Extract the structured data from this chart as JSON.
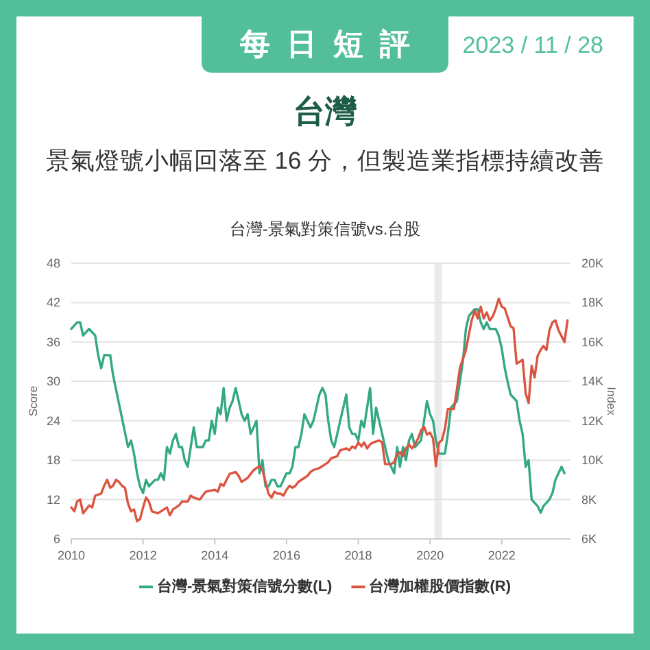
{
  "chart_data": {
    "type": "line",
    "title": "台灣-景氣對策信號vs.台股",
    "annotations": [
      "每日短評",
      "2023 / 11 / 28",
      "台灣",
      "景氣燈號小幅回落至 16 分，但製造業指標持續改善"
    ],
    "ylabel": "Score",
    "y2label": "Index",
    "xlim": [
      "2010-01",
      "2023-12"
    ],
    "xticks": [
      "2010",
      "2012",
      "2014",
      "2016",
      "2018",
      "2020",
      "2022"
    ],
    "ylim": [
      6,
      48
    ],
    "yticks": [
      6,
      12,
      18,
      24,
      30,
      36,
      42,
      48
    ],
    "y2lim": [
      6000,
      20000
    ],
    "y2ticks": [
      {
        "value": 6000,
        "label": "6K"
      },
      {
        "value": 8000,
        "label": "8K"
      },
      {
        "value": 10000,
        "label": "10K"
      },
      {
        "value": 12000,
        "label": "12K"
      },
      {
        "value": 14000,
        "label": "14K"
      },
      {
        "value": 16000,
        "label": "16K"
      },
      {
        "value": 18000,
        "label": "18K"
      },
      {
        "value": 20000,
        "label": "20K"
      }
    ],
    "grid": "y",
    "legend": "bottom",
    "bands": [
      {
        "axis": "x",
        "from": "2020-02-15",
        "to": "2020-04-30",
        "color": "#ebebeb"
      }
    ],
    "series": [
      {
        "name": "台灣-景氣對策信號分數(L)",
        "color": "#33a884",
        "x": [
          "2010-01",
          "2010-03",
          "2010-04",
          "2010-05",
          "2010-07",
          "2010-09",
          "2010-10",
          "2010-11",
          "2010-12",
          "2011-02",
          "2011-03",
          "2011-08",
          "2011-09",
          "2011-10",
          "2011-11",
          "2011-12",
          "2012-01",
          "2012-02",
          "2012-03",
          "2012-05",
          "2012-06",
          "2012-07",
          "2012-08",
          "2012-09",
          "2012-10",
          "2012-11",
          "2012-12",
          "2013-01",
          "2013-02",
          "2013-03",
          "2013-04",
          "2013-05",
          "2013-06",
          "2013-07",
          "2013-09",
          "2013-10",
          "2013-11",
          "2013-12",
          "2014-01",
          "2014-02",
          "2014-03",
          "2014-04",
          "2014-05",
          "2014-06",
          "2014-07",
          "2014-08",
          "2014-09",
          "2014-10",
          "2014-11",
          "2014-12",
          "2015-01",
          "2015-02",
          "2015-03",
          "2015-04",
          "2015-05",
          "2015-06",
          "2015-07",
          "2015-08",
          "2015-09",
          "2015-10",
          "2015-11",
          "2015-12",
          "2016-01",
          "2016-02",
          "2016-03",
          "2016-04",
          "2016-05",
          "2016-06",
          "2016-07",
          "2016-08",
          "2016-09",
          "2016-10",
          "2016-11",
          "2016-12",
          "2017-01",
          "2017-02",
          "2017-03",
          "2017-04",
          "2017-05",
          "2017-06",
          "2017-07",
          "2017-09",
          "2017-10",
          "2017-11",
          "2017-12",
          "2018-01",
          "2018-02",
          "2018-03",
          "2018-04",
          "2018-05",
          "2018-06",
          "2018-07",
          "2018-08",
          "2018-09",
          "2018-11",
          "2018-12",
          "2019-01",
          "2019-02",
          "2019-03",
          "2019-04",
          "2019-05",
          "2019-06",
          "2019-07",
          "2019-08",
          "2019-10",
          "2019-11",
          "2019-12",
          "2020-01",
          "2020-02",
          "2020-03",
          "2020-04",
          "2020-06",
          "2020-07",
          "2020-08",
          "2020-10",
          "2020-11",
          "2020-12",
          "2021-01",
          "2021-02",
          "2021-04",
          "2021-05",
          "2021-06",
          "2021-07",
          "2021-08",
          "2021-09",
          "2021-10",
          "2021-11",
          "2021-12",
          "2022-01",
          "2022-02",
          "2022-03",
          "2022-04",
          "2022-06",
          "2022-07",
          "2022-08",
          "2022-09",
          "2022-10",
          "2022-11",
          "2023-01",
          "2023-02",
          "2023-03",
          "2023-05",
          "2023-06",
          "2023-07",
          "2023-09",
          "2023-10"
        ],
        "values": [
          38,
          39,
          39,
          37,
          38,
          37,
          34,
          32,
          34,
          34,
          31,
          20,
          21,
          19,
          16,
          14,
          13,
          15,
          14,
          15,
          15,
          16,
          15,
          20,
          19,
          21,
          22,
          20,
          20,
          18,
          17,
          20,
          23,
          20,
          20,
          21,
          21,
          24,
          22,
          26,
          25,
          29,
          24,
          26,
          27,
          29,
          27,
          25,
          24,
          25,
          22,
          23,
          24,
          16,
          18,
          14,
          14,
          15,
          15,
          14,
          14,
          15,
          16,
          16,
          17,
          20,
          20,
          22,
          25,
          24,
          23,
          24,
          26,
          28,
          29,
          28,
          24,
          21,
          20,
          22,
          24,
          28,
          23,
          22,
          22,
          21,
          24,
          23,
          26,
          29,
          22,
          26,
          24,
          22,
          18,
          17,
          16,
          20,
          17,
          20,
          18,
          21,
          22,
          20,
          21,
          24,
          27,
          25,
          24,
          21,
          19,
          19,
          22,
          26,
          27,
          30,
          33,
          38,
          40,
          41,
          41,
          39,
          38,
          39,
          38,
          38,
          38,
          37,
          35,
          32,
          30,
          28,
          27,
          24,
          22,
          17,
          18,
          12,
          11,
          10,
          11,
          12,
          13,
          15,
          17,
          16
        ]
      },
      {
        "name": "台灣加權股價指數(R)",
        "color": "#dc5440",
        "axis": "y2",
        "x": [
          "2010-01",
          "2010-02",
          "2010-03",
          "2010-04",
          "2010-05",
          "2010-07",
          "2010-08",
          "2010-09",
          "2010-11",
          "2010-12",
          "2011-01",
          "2011-02",
          "2011-03",
          "2011-04",
          "2011-05",
          "2011-06",
          "2011-07",
          "2011-08",
          "2011-09",
          "2011-10",
          "2011-11",
          "2011-12",
          "2012-01",
          "2012-02",
          "2012-03",
          "2012-04",
          "2012-06",
          "2012-09",
          "2012-10",
          "2012-11",
          "2013-01",
          "2013-02",
          "2013-04",
          "2013-05",
          "2013-06",
          "2013-08",
          "2013-09",
          "2013-10",
          "2014-01",
          "2014-02",
          "2014-03",
          "2014-04",
          "2014-05",
          "2014-06",
          "2014-08",
          "2014-09",
          "2014-10",
          "2014-11",
          "2014-12",
          "2015-01",
          "2015-02",
          "2015-03",
          "2015-04",
          "2015-05",
          "2015-06",
          "2015-07",
          "2015-08",
          "2015-09",
          "2015-10",
          "2015-11",
          "2015-12",
          "2016-01",
          "2016-02",
          "2016-03",
          "2016-04",
          "2016-05",
          "2016-07",
          "2016-08",
          "2016-09",
          "2016-10",
          "2016-12",
          "2017-02",
          "2017-03",
          "2017-04",
          "2017-06",
          "2017-07",
          "2017-09",
          "2017-10",
          "2017-11",
          "2017-12",
          "2018-01",
          "2018-02",
          "2018-03",
          "2018-04",
          "2018-05",
          "2018-06",
          "2018-08",
          "2018-09",
          "2018-10",
          "2018-12",
          "2019-01",
          "2019-02",
          "2019-03",
          "2019-04",
          "2019-05",
          "2019-06",
          "2019-07",
          "2019-08",
          "2019-09",
          "2019-10",
          "2019-11",
          "2019-12",
          "2020-01",
          "2020-02",
          "2020-03",
          "2020-04",
          "2020-05",
          "2020-06",
          "2020-07",
          "2020-09",
          "2020-10",
          "2020-11",
          "2021-01",
          "2021-02",
          "2021-03",
          "2021-04",
          "2021-05",
          "2021-06",
          "2021-07",
          "2021-08",
          "2021-09",
          "2021-10",
          "2021-11",
          "2021-12",
          "2022-01",
          "2022-02",
          "2022-04",
          "2022-05",
          "2022-06",
          "2022-07",
          "2022-08",
          "2022-09",
          "2022-10",
          "2022-11",
          "2022-12",
          "2023-01",
          "2023-02",
          "2023-03",
          "2023-04",
          "2023-05",
          "2023-06",
          "2023-07",
          "2023-08",
          "2023-09",
          "2023-10",
          "2023-11"
        ],
        "values": [
          7600,
          7400,
          7900,
          8000,
          7300,
          7700,
          7600,
          8200,
          8300,
          8700,
          9000,
          8600,
          8700,
          9000,
          8900,
          8700,
          8600,
          7800,
          7400,
          7500,
          6900,
          7000,
          7600,
          8100,
          7900,
          7400,
          7300,
          7600,
          7200,
          7500,
          7700,
          7900,
          7900,
          8200,
          8100,
          8000,
          8200,
          8400,
          8500,
          8400,
          8800,
          8700,
          9000,
          9300,
          9400,
          9200,
          8900,
          9000,
          9100,
          9300,
          9500,
          9600,
          9700,
          9500,
          8900,
          8300,
          8100,
          8400,
          8300,
          8300,
          8200,
          8500,
          8700,
          8600,
          8700,
          8900,
          9100,
          9200,
          9400,
          9500,
          9600,
          9800,
          9900,
          10100,
          10200,
          10500,
          10600,
          10500,
          10700,
          10600,
          10900,
          10700,
          10900,
          10600,
          10800,
          10900,
          11000,
          10900,
          9800,
          9800,
          9900,
          10300,
          10400,
          10200,
          10600,
          10800,
          10600,
          10800,
          11100,
          11500,
          11700,
          11300,
          11400,
          11100,
          9700,
          10900,
          11000,
          11600,
          12600,
          12600,
          13600,
          14700,
          15600,
          16400,
          17100,
          17600,
          17200,
          17800,
          17200,
          17500,
          17100,
          17300,
          17700,
          18200,
          17800,
          17700,
          16800,
          16700,
          14900,
          15000,
          15100,
          13400,
          12900,
          14800,
          14200,
          15300,
          15600,
          15800,
          15600,
          16600,
          17000,
          17100,
          16600,
          16300,
          16000,
          17100
        ]
      }
    ]
  }
}
